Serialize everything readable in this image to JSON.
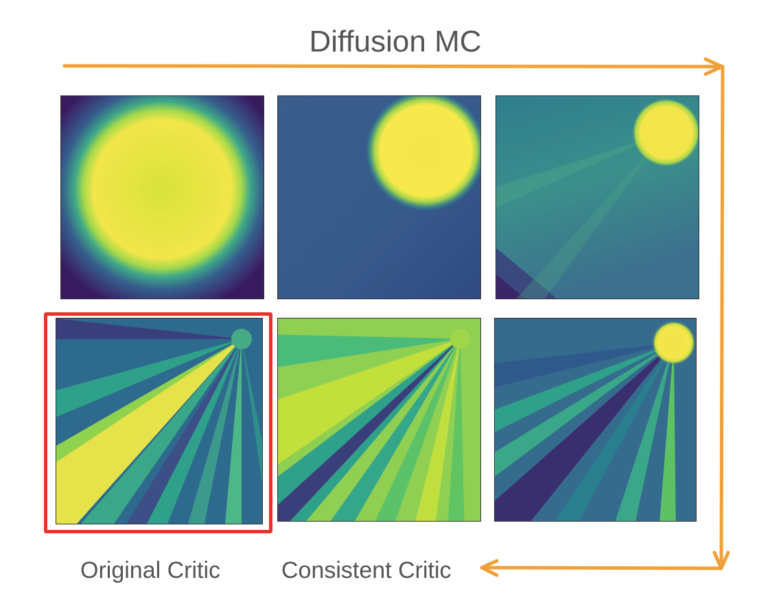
{
  "title": "Diffusion MC",
  "labels": {
    "original": "Original Critic",
    "consistent": "Consistent Critic"
  },
  "colors": {
    "arrow": "#f0a038",
    "highlight": "#e8332a",
    "viridis_dark": "#440154",
    "viridis_blue": "#3b528b",
    "viridis_teal": "#21918c",
    "viridis_green": "#5ec962",
    "viridis_yellow": "#fde725"
  },
  "panels": [
    {
      "row": 1,
      "col": 1,
      "style": "large-blob"
    },
    {
      "row": 1,
      "col": 2,
      "style": "corner-blob"
    },
    {
      "row": 1,
      "col": 3,
      "style": "small-blob-rays"
    },
    {
      "row": 2,
      "col": 1,
      "style": "rays-yellow",
      "highlighted": true
    },
    {
      "row": 2,
      "col": 2,
      "style": "rays-green"
    },
    {
      "row": 2,
      "col": 3,
      "style": "rays-small-blob"
    }
  ]
}
